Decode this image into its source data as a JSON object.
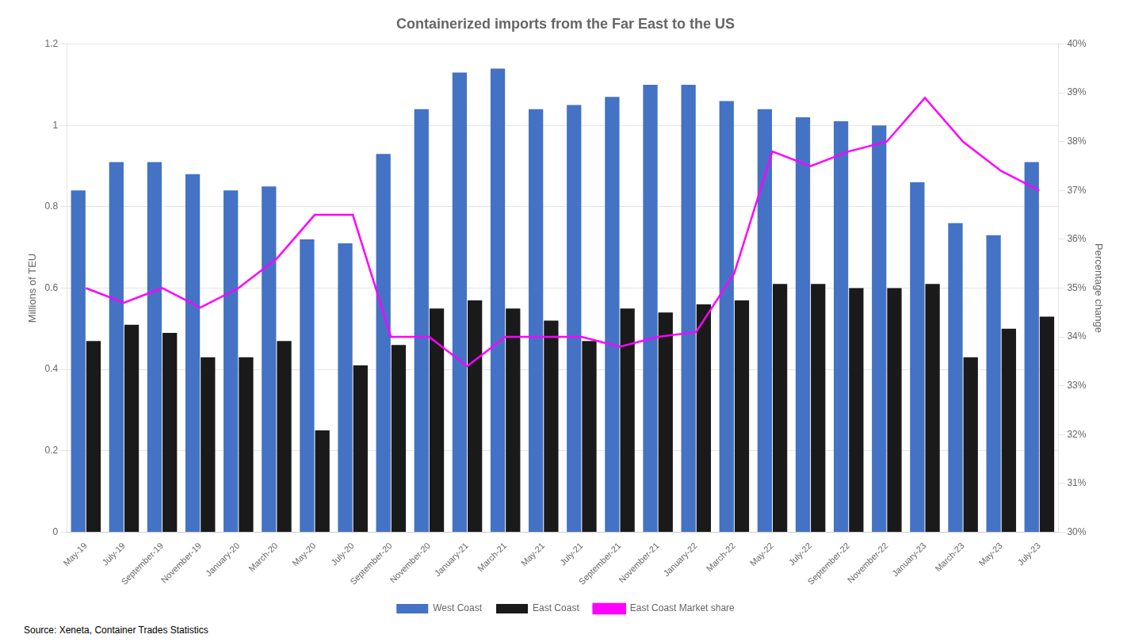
{
  "chart_data": {
    "type": "bar",
    "title": "Containerized imports from the Far East to the US",
    "ylabel": "Millions of TEU",
    "y2label": "Percentage change",
    "annotations": [
      "Source: Xeneta, Container Trades Statistics"
    ],
    "categories": [
      "May-19",
      "July-19",
      "September-19",
      "November-19",
      "January-20",
      "March-20",
      "May-20",
      "July-20",
      "September-20",
      "November-20",
      "January-21",
      "March-21",
      "May-21",
      "July-21",
      "September-21",
      "November-21",
      "January-22",
      "March-22",
      "May-22",
      "July-22",
      "September-22",
      "November-22",
      "January-23",
      "March-23",
      "May-23",
      "July-23"
    ],
    "series": [
      {
        "name": "West Coast",
        "type": "bar",
        "color": "#4472C4",
        "values": [
          0.84,
          0.91,
          0.91,
          0.88,
          0.84,
          0.85,
          0.72,
          0.71,
          0.93,
          1.04,
          1.13,
          1.14,
          1.04,
          1.05,
          1.07,
          1.1,
          1.1,
          1.06,
          1.04,
          1.02,
          1.01,
          1.0,
          0.86,
          0.76,
          0.73,
          0.91
        ]
      },
      {
        "name": "East Coast",
        "type": "bar",
        "color": "#1a1a1a",
        "values": [
          0.47,
          0.51,
          0.49,
          0.43,
          0.43,
          0.47,
          0.25,
          0.41,
          0.46,
          0.55,
          0.57,
          0.55,
          0.52,
          0.47,
          0.55,
          0.54,
          0.56,
          0.57,
          0.61,
          0.61,
          0.6,
          0.6,
          0.61,
          0.43,
          0.5,
          0.53
        ]
      },
      {
        "name": "East Coast Market share",
        "type": "line",
        "color": "#FF00FF",
        "axis": "y2",
        "values": [
          35.0,
          34.7,
          35.0,
          34.6,
          35.0,
          35.6,
          36.5,
          36.5,
          34.0,
          34.0,
          33.4,
          34.0,
          34.0,
          34.0,
          33.8,
          34.0,
          34.1,
          35.3,
          37.8,
          37.5,
          37.8,
          38.0,
          38.9,
          38.0,
          37.4,
          37.0
        ]
      }
    ],
    "ylim": [
      0,
      1.2
    ],
    "yticks": [
      0,
      0.2,
      0.4,
      0.6,
      0.8,
      1,
      1.2
    ],
    "y2lim": [
      30,
      40
    ],
    "y2ticks": [
      {
        "value": 30,
        "label": "30%"
      },
      {
        "value": 31,
        "label": "31%"
      },
      {
        "value": 32,
        "label": "32%"
      },
      {
        "value": 33,
        "label": "33%"
      },
      {
        "value": 34,
        "label": "34%"
      },
      {
        "value": 35,
        "label": "35%"
      },
      {
        "value": 36,
        "label": "36%"
      },
      {
        "value": 37,
        "label": "37%"
      },
      {
        "value": 38,
        "label": "38%"
      },
      {
        "value": 39,
        "label": "39%"
      },
      {
        "value": 40,
        "label": "40%"
      }
    ],
    "grid": true,
    "legend": "bottom"
  }
}
